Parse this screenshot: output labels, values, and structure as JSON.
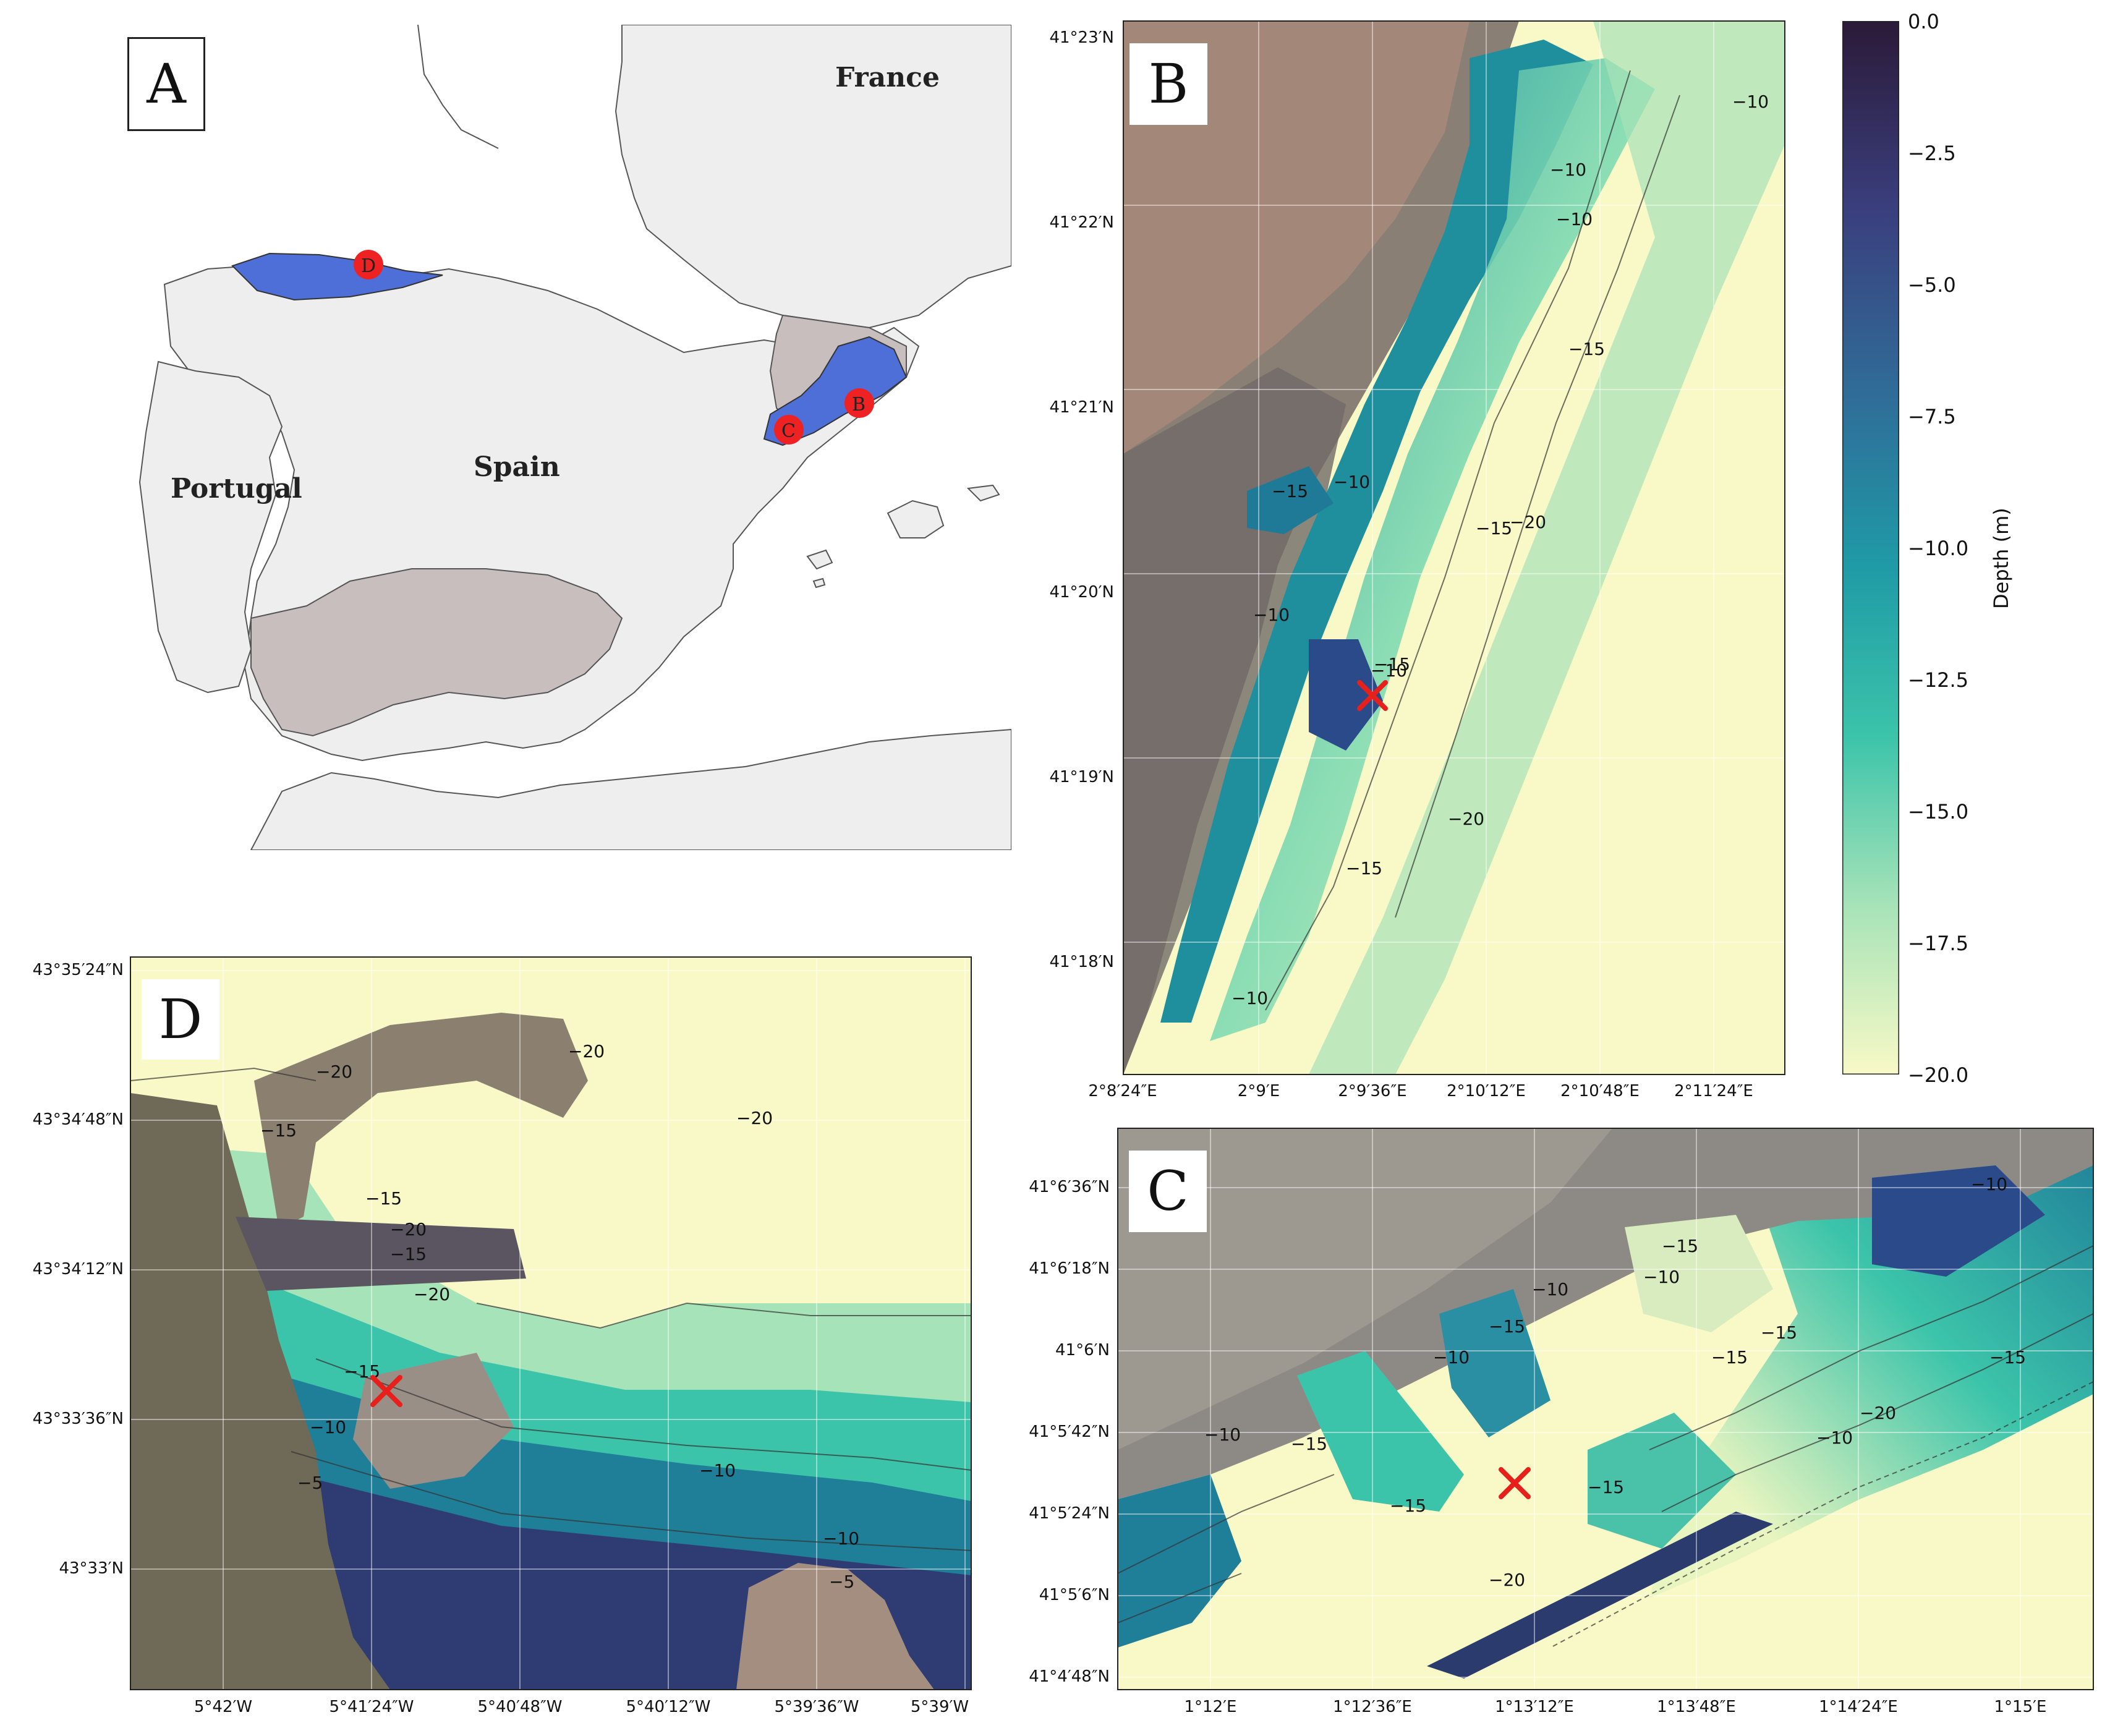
{
  "panel_a": {
    "letter": "A",
    "countries": {
      "france": "France",
      "spain": "Spain",
      "portugal": "Portugal"
    },
    "markers": {
      "b": "B",
      "c": "C",
      "d": "D"
    },
    "colors": {
      "sea": "#ffffff",
      "land": "#eeeeee",
      "highlight_region": "#c8bebe",
      "study_region": "#4f6fd8",
      "marker": "#ee2222"
    }
  },
  "panel_b": {
    "letter": "B",
    "y_ticks": [
      "41°23′N",
      "41°22′N",
      "41°21′N",
      "41°20′N",
      "41°19′N",
      "41°18′N"
    ],
    "x_ticks": [
      "2°8′24″E",
      "2°9′E",
      "2°9′36″E",
      "2°10′12″E",
      "2°10′48″E",
      "2°11′24″E"
    ],
    "contours": [
      "−10",
      "−10",
      "−10",
      "−15",
      "−15",
      "−10",
      "−15",
      "−20",
      "−10",
      "−15",
      "−20",
      "−10",
      "−15",
      "−10"
    ]
  },
  "panel_c": {
    "letter": "C",
    "y_ticks": [
      "41°6′36″N",
      "41°6′18″N",
      "41°6′N",
      "41°5′42″N",
      "41°5′24″N",
      "41°5′6″N",
      "41°4′48″N"
    ],
    "x_ticks": [
      "1°12′E",
      "1°12′36″E",
      "1°13′12″E",
      "1°13′48″E",
      "1°14′24″E",
      "1°15′E"
    ],
    "contours": [
      "−10",
      "−15",
      "−10",
      "−10",
      "−15",
      "−15",
      "−15",
      "−10",
      "−15",
      "−10",
      "−15",
      "−10",
      "−15",
      "−20",
      "−15",
      "−20"
    ]
  },
  "panel_d": {
    "letter": "D",
    "y_ticks": [
      "43°35′24″N",
      "43°34′48″N",
      "43°34′12″N",
      "43°33′36″N",
      "43°33′N"
    ],
    "x_ticks": [
      "5°42′W",
      "5°41′24″W",
      "5°40′48″W",
      "5°40′12″W",
      "5°39′36″W",
      "5°39′W"
    ],
    "contours": [
      "−20",
      "−20",
      "−15",
      "−15",
      "−20",
      "−15",
      "−20",
      "−20",
      "−15",
      "−10",
      "−5",
      "−10",
      "−10",
      "−5"
    ]
  },
  "colorbar": {
    "label": "Depth (m)",
    "ticks": [
      "0.0",
      "−2.5",
      "−5.0",
      "−7.5",
      "−10.0",
      "−12.5",
      "−15.0",
      "−17.5",
      "−20.0"
    ],
    "colors": [
      "#2b1a38",
      "#3a3f7e",
      "#2f6e99",
      "#1f9ba6",
      "#3cc4aa",
      "#a7e3b8",
      "#f8f9c6"
    ]
  },
  "site_marker_color": "#e8201c"
}
